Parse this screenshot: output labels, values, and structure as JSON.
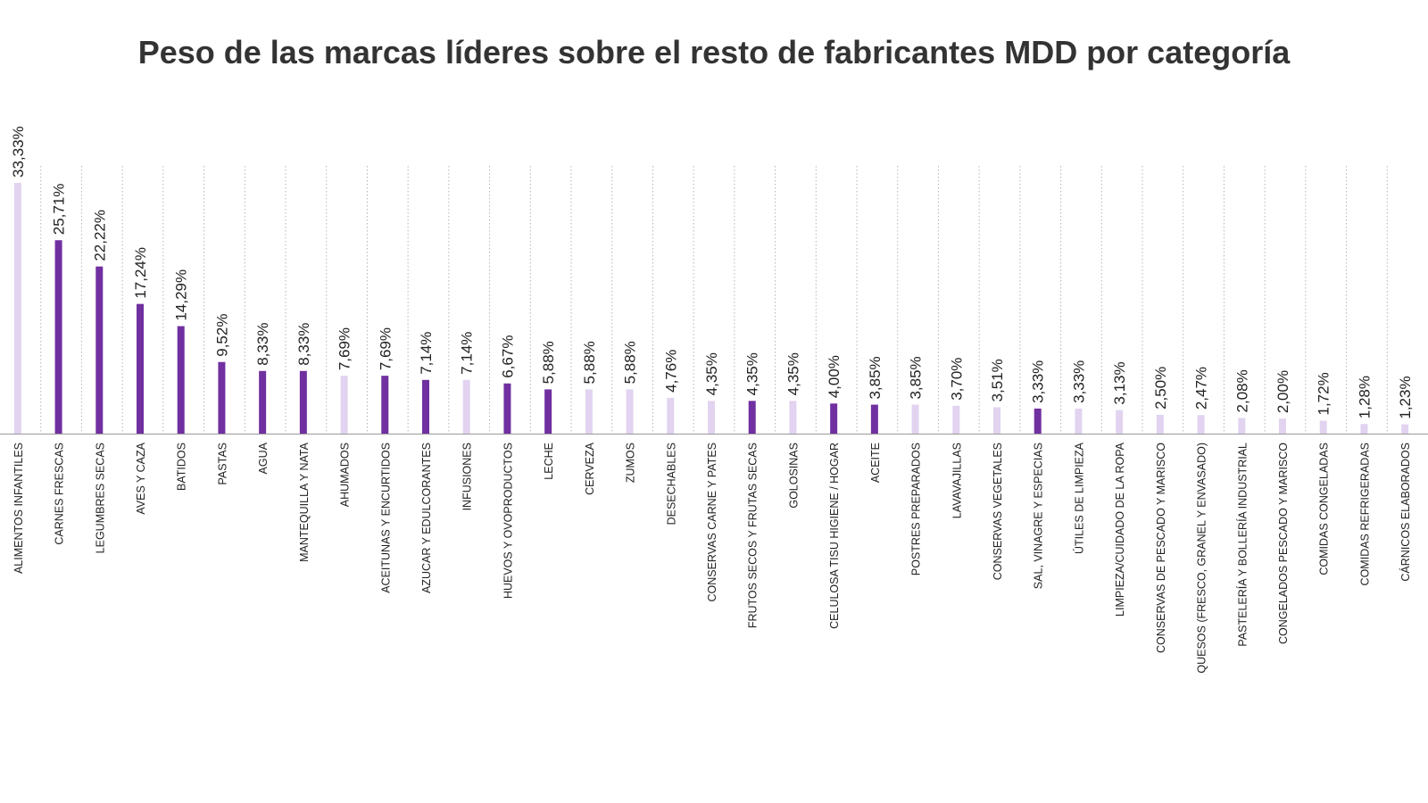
{
  "chart_data": {
    "type": "bar",
    "title": "Peso de las marcas líderes sobre el resto de fabricantes MDD por categoría",
    "xlabel": "",
    "ylabel": "",
    "ylim": [
      0,
      34
    ],
    "grid": "vertical dotted",
    "categories": [
      "ALIMENTOS INFANTILES",
      "CARNES FRESCAS",
      "LEGUMBRES SECAS",
      "AVES Y CAZA",
      "BATIDOS",
      "PASTAS",
      "AGUA",
      "MANTEQUILLA Y NATA",
      "AHUMADOS",
      "ACEITUNAS Y ENCURTIDOS",
      "AZUCAR Y EDULCORANTES",
      "INFUSIONES",
      "HUEVOS Y OVOPRODUCTOS",
      "LECHE",
      "CERVEZA",
      "ZUMOS",
      "DESECHABLES",
      "CONSERVAS CARNE Y PATES",
      "FRUTOS SECOS Y FRUTAS SECAS",
      "GOLOSINAS",
      "CELULOSA TISU HIGIENE / HOGAR",
      "ACEITE",
      "POSTRES PREPARADOS",
      "LAVAVAJILLAS",
      "CONSERVAS VEGETALES",
      "SAL, VINAGRE Y ESPECIAS",
      "ÚTILES DE LIMPIEZA",
      "LIMPIEZA/CUIDADO DE LA ROPA",
      "CONSERVAS DE PESCADO Y MARISCO",
      "QUESOS (FRESCO, GRANEL Y ENVASADO)",
      "PASTELERÍA Y BOLLERÍA INDUSTRIAL",
      "CONGELADOS PESCADO Y MARISCO",
      "COMIDAS CONGELADAS",
      "COMIDAS REFRIGERADAS",
      "CÁRNICOS ELABORADOS"
    ],
    "values": [
      33.33,
      25.71,
      22.22,
      17.24,
      14.29,
      9.52,
      8.33,
      8.33,
      7.69,
      7.69,
      7.14,
      7.14,
      6.67,
      5.88,
      5.88,
      5.88,
      4.76,
      4.35,
      4.35,
      4.35,
      4.0,
      3.85,
      3.85,
      3.7,
      3.51,
      3.33,
      3.33,
      3.13,
      2.5,
      2.47,
      2.08,
      2.0,
      1.72,
      1.28,
      1.23
    ],
    "labels": [
      "33,33%",
      "25,71%",
      "22,22%",
      "17,24%",
      "14,29%",
      "9,52%",
      "8,33%",
      "8,33%",
      "7,69%",
      "7,69%",
      "7,14%",
      "7,14%",
      "6,67%",
      "5,88%",
      "5,88%",
      "5,88%",
      "4,76%",
      "4,35%",
      "4,35%",
      "4,35%",
      "4,00%",
      "3,85%",
      "3,85%",
      "3,70%",
      "3,51%",
      "3,33%",
      "3,33%",
      "3,13%",
      "2,50%",
      "2,47%",
      "2,08%",
      "2,00%",
      "1,72%",
      "1,28%",
      "1,23%"
    ],
    "highlight": [
      false,
      true,
      true,
      true,
      true,
      true,
      true,
      true,
      false,
      true,
      true,
      false,
      true,
      true,
      false,
      false,
      false,
      false,
      true,
      false,
      true,
      true,
      false,
      false,
      false,
      true,
      false,
      false,
      false,
      false,
      false,
      false,
      false,
      false,
      false
    ],
    "colors": {
      "highlight": "#7030a0",
      "normal": "#e2d3f0",
      "grid": "#b5b5b5",
      "axis": "#9a9a9a",
      "text": "#222222"
    }
  }
}
